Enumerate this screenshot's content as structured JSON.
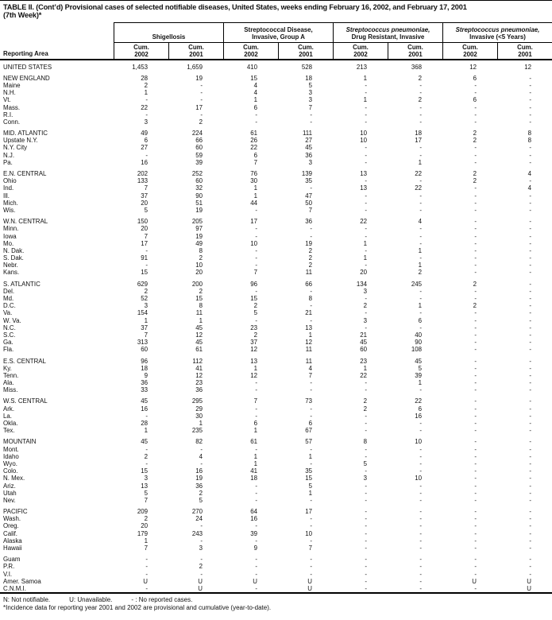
{
  "page": {
    "background": "#ffffff",
    "text_color": "#111111",
    "line_color": "#000000"
  },
  "title": {
    "line1": "TABLE II. (Cont’d) Provisional cases of selected notifiable diseases, United States, weeks ending February 16, 2002, and February 17, 2001",
    "line2": "(7th Week)*"
  },
  "table": {
    "header": {
      "reporting_area_label": "Reporting Area",
      "cum_label": "Cum.",
      "years": [
        "2002",
        "2001"
      ],
      "groups": [
        {
          "line1": "Shigellosis",
          "line2": "",
          "italic_line1": false
        },
        {
          "line1": "Streptococcal Disease,",
          "line2": "Invasive, Group A",
          "italic_line1": false
        },
        {
          "line1": "Streptococcus pneumoniae,",
          "line2": "Drug Resistant, Invasive",
          "italic_line1": true
        },
        {
          "line1": "Streptococcus pneumoniae,",
          "line2": "Invasive (<5 Years)",
          "italic_line1": true
        }
      ]
    },
    "rows": [
      {
        "area": "UNITED STATES",
        "gap": false,
        "values": [
          "1,453",
          "1,659",
          "410",
          "528",
          "213",
          "368",
          "12",
          "12"
        ]
      },
      {
        "area": "NEW ENGLAND",
        "gap": true,
        "values": [
          "28",
          "19",
          "15",
          "18",
          "1",
          "2",
          "6",
          "-"
        ]
      },
      {
        "area": "Maine",
        "gap": false,
        "values": [
          "2",
          "-",
          "4",
          "5",
          "-",
          "-",
          "-",
          "-"
        ]
      },
      {
        "area": "N.H.",
        "gap": false,
        "values": [
          "1",
          "-",
          "4",
          "3",
          "-",
          "-",
          "-",
          "-"
        ]
      },
      {
        "area": "Vt.",
        "gap": false,
        "values": [
          "-",
          "-",
          "1",
          "3",
          "1",
          "2",
          "6",
          "-"
        ]
      },
      {
        "area": "Mass.",
        "gap": false,
        "values": [
          "22",
          "17",
          "6",
          "7",
          "-",
          "-",
          "-",
          "-"
        ]
      },
      {
        "area": "R.I.",
        "gap": false,
        "values": [
          "-",
          "-",
          "-",
          "-",
          "-",
          "-",
          "-",
          "-"
        ]
      },
      {
        "area": "Conn.",
        "gap": false,
        "values": [
          "3",
          "2",
          "-",
          "-",
          "-",
          "-",
          "-",
          "-"
        ]
      },
      {
        "area": "MID. ATLANTIC",
        "gap": true,
        "values": [
          "49",
          "224",
          "61",
          "111",
          "10",
          "18",
          "2",
          "8"
        ]
      },
      {
        "area": "Upstate N.Y.",
        "gap": false,
        "values": [
          "6",
          "66",
          "26",
          "27",
          "10",
          "17",
          "2",
          "8"
        ]
      },
      {
        "area": "N.Y. City",
        "gap": false,
        "values": [
          "27",
          "60",
          "22",
          "45",
          "-",
          "-",
          "-",
          "-"
        ]
      },
      {
        "area": "N.J.",
        "gap": false,
        "values": [
          "-",
          "59",
          "6",
          "36",
          "-",
          "-",
          "-",
          "-"
        ]
      },
      {
        "area": "Pa.",
        "gap": false,
        "values": [
          "16",
          "39",
          "7",
          "3",
          "-",
          "1",
          "-",
          "-"
        ]
      },
      {
        "area": "E.N. CENTRAL",
        "gap": true,
        "values": [
          "202",
          "252",
          "76",
          "139",
          "13",
          "22",
          "2",
          "4"
        ]
      },
      {
        "area": "Ohio",
        "gap": false,
        "values": [
          "133",
          "60",
          "30",
          "35",
          "-",
          "-",
          "2",
          "-"
        ]
      },
      {
        "area": "Ind.",
        "gap": false,
        "values": [
          "7",
          "32",
          "1",
          "-",
          "13",
          "22",
          "-",
          "4"
        ]
      },
      {
        "area": "Ill.",
        "gap": false,
        "values": [
          "37",
          "90",
          "1",
          "47",
          "-",
          "-",
          "-",
          "-"
        ]
      },
      {
        "area": "Mich.",
        "gap": false,
        "values": [
          "20",
          "51",
          "44",
          "50",
          "-",
          "-",
          "-",
          "-"
        ]
      },
      {
        "area": "Wis.",
        "gap": false,
        "values": [
          "5",
          "19",
          "-",
          "7",
          "-",
          "-",
          "-",
          "-"
        ]
      },
      {
        "area": "W.N. CENTRAL",
        "gap": true,
        "values": [
          "150",
          "205",
          "17",
          "36",
          "22",
          "4",
          "-",
          "-"
        ]
      },
      {
        "area": "Minn.",
        "gap": false,
        "values": [
          "20",
          "97",
          "-",
          "-",
          "-",
          "-",
          "-",
          "-"
        ]
      },
      {
        "area": "Iowa",
        "gap": false,
        "values": [
          "7",
          "19",
          "-",
          "-",
          "-",
          "-",
          "-",
          "-"
        ]
      },
      {
        "area": "Mo.",
        "gap": false,
        "values": [
          "17",
          "49",
          "10",
          "19",
          "1",
          "-",
          "-",
          "-"
        ]
      },
      {
        "area": "N. Dak.",
        "gap": false,
        "values": [
          "-",
          "8",
          "-",
          "2",
          "-",
          "1",
          "-",
          "-"
        ]
      },
      {
        "area": "S. Dak.",
        "gap": false,
        "values": [
          "91",
          "2",
          "-",
          "2",
          "1",
          "-",
          "-",
          "-"
        ]
      },
      {
        "area": "Nebr.",
        "gap": false,
        "values": [
          "-",
          "10",
          "-",
          "2",
          "-",
          "1",
          "-",
          "-"
        ]
      },
      {
        "area": "Kans.",
        "gap": false,
        "values": [
          "15",
          "20",
          "7",
          "11",
          "20",
          "2",
          "-",
          "-"
        ]
      },
      {
        "area": "S. ATLANTIC",
        "gap": true,
        "values": [
          "629",
          "200",
          "96",
          "66",
          "134",
          "245",
          "2",
          "-"
        ]
      },
      {
        "area": "Del.",
        "gap": false,
        "values": [
          "2",
          "2",
          "-",
          "-",
          "3",
          "-",
          "-",
          "-"
        ]
      },
      {
        "area": "Md.",
        "gap": false,
        "values": [
          "52",
          "15",
          "15",
          "8",
          "-",
          "-",
          "-",
          "-"
        ]
      },
      {
        "area": "D.C.",
        "gap": false,
        "values": [
          "3",
          "8",
          "2",
          "-",
          "2",
          "1",
          "2",
          "-"
        ]
      },
      {
        "area": "Va.",
        "gap": false,
        "values": [
          "154",
          "11",
          "5",
          "21",
          "-",
          "-",
          "-",
          "-"
        ]
      },
      {
        "area": "W. Va.",
        "gap": false,
        "values": [
          "1",
          "1",
          "-",
          "-",
          "3",
          "6",
          "-",
          "-"
        ]
      },
      {
        "area": "N.C.",
        "gap": false,
        "values": [
          "37",
          "45",
          "23",
          "13",
          "-",
          "-",
          "-",
          "-"
        ]
      },
      {
        "area": "S.C.",
        "gap": false,
        "values": [
          "7",
          "12",
          "2",
          "1",
          "21",
          "40",
          "-",
          "-"
        ]
      },
      {
        "area": "Ga.",
        "gap": false,
        "values": [
          "313",
          "45",
          "37",
          "12",
          "45",
          "90",
          "-",
          "-"
        ]
      },
      {
        "area": "Fla.",
        "gap": false,
        "values": [
          "60",
          "61",
          "12",
          "11",
          "60",
          "108",
          "-",
          "-"
        ]
      },
      {
        "area": "E.S. CENTRAL",
        "gap": true,
        "values": [
          "96",
          "112",
          "13",
          "11",
          "23",
          "45",
          "-",
          "-"
        ]
      },
      {
        "area": "Ky.",
        "gap": false,
        "values": [
          "18",
          "41",
          "1",
          "4",
          "1",
          "5",
          "-",
          "-"
        ]
      },
      {
        "area": "Tenn.",
        "gap": false,
        "values": [
          "9",
          "12",
          "12",
          "7",
          "22",
          "39",
          "-",
          "-"
        ]
      },
      {
        "area": "Ala.",
        "gap": false,
        "values": [
          "36",
          "23",
          "-",
          "-",
          "-",
          "1",
          "-",
          "-"
        ]
      },
      {
        "area": "Miss.",
        "gap": false,
        "values": [
          "33",
          "36",
          "-",
          "-",
          "-",
          "-",
          "-",
          "-"
        ]
      },
      {
        "area": "W.S. CENTRAL",
        "gap": true,
        "values": [
          "45",
          "295",
          "7",
          "73",
          "2",
          "22",
          "-",
          "-"
        ]
      },
      {
        "area": "Ark.",
        "gap": false,
        "values": [
          "16",
          "29",
          "-",
          "-",
          "2",
          "6",
          "-",
          "-"
        ]
      },
      {
        "area": "La.",
        "gap": false,
        "values": [
          "-",
          "30",
          "-",
          "-",
          "-",
          "16",
          "-",
          "-"
        ]
      },
      {
        "area": "Okla.",
        "gap": false,
        "values": [
          "28",
          "1",
          "6",
          "6",
          "-",
          "-",
          "-",
          "-"
        ]
      },
      {
        "area": "Tex.",
        "gap": false,
        "values": [
          "1",
          "235",
          "1",
          "67",
          "-",
          "-",
          "-",
          "-"
        ]
      },
      {
        "area": "MOUNTAIN",
        "gap": true,
        "values": [
          "45",
          "82",
          "61",
          "57",
          "8",
          "10",
          "-",
          "-"
        ]
      },
      {
        "area": "Mont.",
        "gap": false,
        "values": [
          "-",
          "-",
          "-",
          "-",
          "-",
          "-",
          "-",
          "-"
        ]
      },
      {
        "area": "Idaho",
        "gap": false,
        "values": [
          "2",
          "4",
          "1",
          "1",
          "-",
          "-",
          "-",
          "-"
        ]
      },
      {
        "area": "Wyo.",
        "gap": false,
        "values": [
          "-",
          "-",
          "1",
          "-",
          "5",
          "-",
          "-",
          "-"
        ]
      },
      {
        "area": "Colo.",
        "gap": false,
        "values": [
          "15",
          "16",
          "41",
          "35",
          "-",
          "-",
          "-",
          "-"
        ]
      },
      {
        "area": "N. Mex.",
        "gap": false,
        "values": [
          "3",
          "19",
          "18",
          "15",
          "3",
          "10",
          "-",
          "-"
        ]
      },
      {
        "area": "Ariz.",
        "gap": false,
        "values": [
          "13",
          "36",
          "-",
          "5",
          "-",
          "-",
          "-",
          "-"
        ]
      },
      {
        "area": "Utah",
        "gap": false,
        "values": [
          "5",
          "2",
          "-",
          "1",
          "-",
          "-",
          "-",
          "-"
        ]
      },
      {
        "area": "Nev.",
        "gap": false,
        "values": [
          "7",
          "5",
          "-",
          "-",
          "-",
          "-",
          "-",
          "-"
        ]
      },
      {
        "area": "PACIFIC",
        "gap": true,
        "values": [
          "209",
          "270",
          "64",
          "17",
          "-",
          "-",
          "-",
          "-"
        ]
      },
      {
        "area": "Wash.",
        "gap": false,
        "values": [
          "2",
          "24",
          "16",
          "-",
          "-",
          "-",
          "-",
          "-"
        ]
      },
      {
        "area": "Oreg.",
        "gap": false,
        "values": [
          "20",
          "-",
          "-",
          "-",
          "-",
          "-",
          "-",
          "-"
        ]
      },
      {
        "area": "Calif.",
        "gap": false,
        "values": [
          "179",
          "243",
          "39",
          "10",
          "-",
          "-",
          "-",
          "-"
        ]
      },
      {
        "area": "Alaska",
        "gap": false,
        "values": [
          "1",
          "-",
          "-",
          "-",
          "-",
          "-",
          "-",
          "-"
        ]
      },
      {
        "area": "Hawaii",
        "gap": false,
        "values": [
          "7",
          "3",
          "9",
          "7",
          "-",
          "-",
          "-",
          "-"
        ]
      },
      {
        "area": "Guam",
        "gap": true,
        "values": [
          "-",
          "-",
          "-",
          "-",
          "-",
          "-",
          "-",
          "-"
        ]
      },
      {
        "area": "P.R.",
        "gap": false,
        "values": [
          "-",
          "2",
          "-",
          "-",
          "-",
          "-",
          "-",
          "-"
        ]
      },
      {
        "area": "V.I.",
        "gap": false,
        "values": [
          "-",
          "-",
          "-",
          "-",
          "-",
          "-",
          "-",
          "-"
        ]
      },
      {
        "area": "Amer. Samoa",
        "gap": false,
        "values": [
          "U",
          "U",
          "U",
          "U",
          "-",
          "-",
          "U",
          "U"
        ]
      },
      {
        "area": "C.N.M.I.",
        "gap": false,
        "values": [
          "-",
          "U",
          "-",
          "U",
          "-",
          "-",
          "-",
          "U"
        ]
      }
    ]
  },
  "footnotes": {
    "legend": [
      "N: Not notifiable.",
      "U: Unavailable.",
      "- : No reported cases."
    ],
    "incidence_note": "*Incidence data for reporting year 2001 and 2002 are provisional and cumulative (year-to-date)."
  }
}
